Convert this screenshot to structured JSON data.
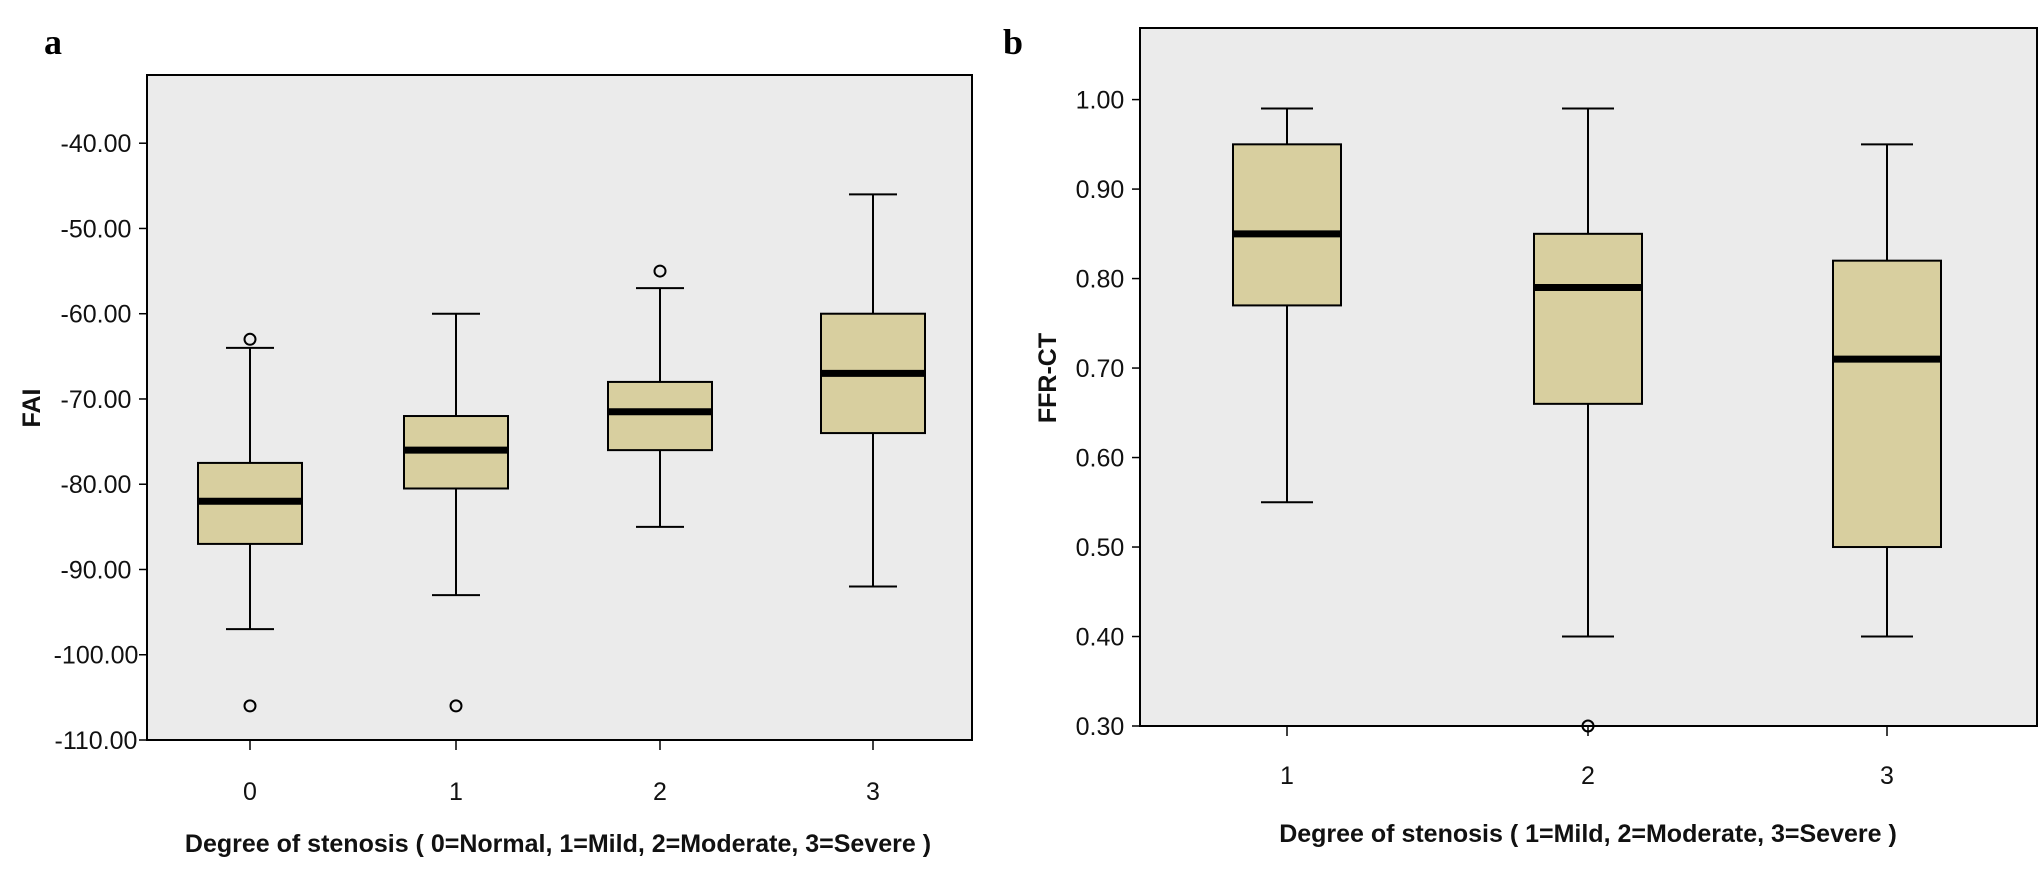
{
  "panels": [
    "a",
    "b"
  ],
  "chart_data": [
    {
      "type": "box",
      "xlabel": "Degree of stenosis ( 0=Normal, 1=Mild, 2=Moderate, 3=Severe )",
      "ylabel": "FAI",
      "ylim": [
        -110,
        -32
      ],
      "yticks": [
        -40,
        -50,
        -60,
        -70,
        -80,
        -90,
        -100,
        -110
      ],
      "ytick_labels": [
        "-40.00",
        "-50.00",
        "-60.00",
        "-70.00",
        "-80.00",
        "-90.00",
        "-100.00",
        "-110.00"
      ],
      "categories": [
        "0",
        "1",
        "2",
        "3"
      ],
      "boxes": [
        {
          "category": "0",
          "whisker_low": -97,
          "q1": -87,
          "median": -82,
          "q3": -77.5,
          "whisker_high": -64,
          "outliers": [
            -63,
            -106
          ]
        },
        {
          "category": "1",
          "whisker_low": -93,
          "q1": -80.5,
          "median": -76,
          "q3": -72,
          "whisker_high": -60,
          "outliers": [
            -106
          ]
        },
        {
          "category": "2",
          "whisker_low": -85,
          "q1": -76,
          "median": -71.5,
          "q3": -68,
          "whisker_high": -57,
          "outliers": [
            -55
          ]
        },
        {
          "category": "3",
          "whisker_low": -92,
          "q1": -74,
          "median": -67,
          "q3": -60,
          "whisker_high": -46,
          "outliers": []
        }
      ],
      "grid": false,
      "legend": "none",
      "colors": {
        "box": "#d8cf9f",
        "plot_bg": "#ebebeb"
      }
    },
    {
      "type": "box",
      "xlabel": "Degree of stenosis ( 1=Mild, 2=Moderate, 3=Severe )",
      "ylabel": "FFR-CT",
      "ylim": [
        0.3,
        1.08
      ],
      "yticks": [
        1.0,
        0.9,
        0.8,
        0.7,
        0.6,
        0.5,
        0.4,
        0.3
      ],
      "ytick_labels": [
        "1.00",
        "0.90",
        "0.80",
        "0.70",
        "0.60",
        "0.50",
        "0.40",
        "0.30"
      ],
      "categories": [
        "1",
        "2",
        "3"
      ],
      "boxes": [
        {
          "category": "1",
          "whisker_low": 0.55,
          "q1": 0.77,
          "median": 0.85,
          "q3": 0.95,
          "whisker_high": 0.99,
          "outliers": []
        },
        {
          "category": "2",
          "whisker_low": 0.4,
          "q1": 0.66,
          "median": 0.79,
          "q3": 0.85,
          "whisker_high": 0.99,
          "outliers": [
            0.3
          ]
        },
        {
          "category": "3",
          "whisker_low": 0.4,
          "q1": 0.5,
          "median": 0.71,
          "q3": 0.82,
          "whisker_high": 0.95,
          "outliers": []
        }
      ],
      "grid": false,
      "legend": "none",
      "colors": {
        "box": "#d8cf9f",
        "plot_bg": "#ebebeb"
      }
    }
  ]
}
